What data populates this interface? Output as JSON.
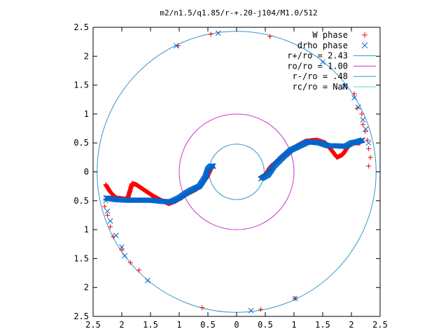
{
  "chart_data": {
    "type": "scatter",
    "title": "m2/n1.5/q1.85/r-+.20-j104/M1.0/512",
    "xlabel": "",
    "ylabel": "",
    "xlim": [
      -2.5,
      2.5
    ],
    "ylim": [
      -2.5,
      2.5
    ],
    "grid": false,
    "legend_position": "top-right",
    "x_ticks": [
      -2.5,
      -2,
      -1.5,
      -1,
      -0.5,
      0,
      0.5,
      1,
      1.5,
      2,
      2.5
    ],
    "x_tick_labels": [
      "2.5",
      "2",
      "1.5",
      "1",
      "0.5",
      "0",
      "0.5",
      "1",
      "1.5",
      "2",
      "2.5"
    ],
    "y_ticks": [
      2.5,
      2,
      1.5,
      1,
      0.5,
      0,
      -0.5,
      -1,
      -1.5,
      -2,
      -2.5
    ],
    "y_tick_labels": [
      "2.5",
      "2",
      "1.5",
      "1",
      "0.5",
      "0",
      "0.5",
      "1",
      "1.5",
      "2",
      "2.5"
    ],
    "series": [
      {
        "name": "W phase",
        "marker": "plus",
        "color": "#ff0000",
        "curve": [
          [
            -2.28,
            -0.22
          ],
          [
            -2.2,
            -0.35
          ],
          [
            -2.1,
            -0.45
          ],
          [
            -1.95,
            -0.47
          ],
          [
            -1.9,
            -0.47
          ],
          [
            -1.85,
            -0.3
          ],
          [
            -1.82,
            -0.2
          ],
          [
            -1.75,
            -0.22
          ],
          [
            -1.6,
            -0.32
          ],
          [
            -1.45,
            -0.42
          ],
          [
            -1.3,
            -0.5
          ],
          [
            -1.18,
            -0.55
          ],
          [
            -1.05,
            -0.5
          ],
          [
            -0.9,
            -0.4
          ],
          [
            -0.7,
            -0.3
          ],
          [
            -0.6,
            -0.2
          ],
          [
            -0.52,
            -0.1
          ],
          [
            -0.45,
            0.05
          ],
          [
            -0.42,
            0.1
          ],
          [
            0.42,
            -0.1
          ],
          [
            0.5,
            -0.05
          ],
          [
            0.6,
            0.1
          ],
          [
            0.7,
            0.18
          ],
          [
            0.85,
            0.3
          ],
          [
            1.05,
            0.45
          ],
          [
            1.2,
            0.53
          ],
          [
            1.4,
            0.55
          ],
          [
            1.55,
            0.5
          ],
          [
            1.65,
            0.38
          ],
          [
            1.75,
            0.25
          ],
          [
            1.85,
            0.3
          ],
          [
            1.95,
            0.45
          ],
          [
            2.05,
            0.5
          ],
          [
            2.15,
            0.5
          ]
        ],
        "points": [
          [
            -0.45,
            2.38
          ],
          [
            0.58,
            2.34
          ],
          [
            -1.02,
            2.18
          ],
          [
            2.05,
            1.35
          ],
          [
            2.1,
            1.1
          ],
          [
            2.18,
            1.0
          ],
          [
            2.2,
            0.82
          ],
          [
            2.24,
            0.7
          ],
          [
            2.28,
            0.55
          ],
          [
            2.3,
            0.4
          ],
          [
            2.33,
            0.25
          ],
          [
            2.3,
            0.1
          ],
          [
            -2.3,
            -0.6
          ],
          [
            -2.25,
            -0.75
          ],
          [
            -2.2,
            -0.95
          ],
          [
            -2.15,
            -1.12
          ],
          [
            -2.0,
            -1.35
          ],
          [
            -1.85,
            -1.57
          ],
          [
            -1.7,
            -1.7
          ],
          [
            -0.6,
            -2.35
          ],
          [
            0.42,
            -2.38
          ],
          [
            1.02,
            -2.19
          ]
        ]
      },
      {
        "name": "drho phase",
        "marker": "cross",
        "color": "#0066cc",
        "curve": [
          [
            -2.28,
            -0.45
          ],
          [
            -2.1,
            -0.48
          ],
          [
            -1.9,
            -0.49
          ],
          [
            -1.7,
            -0.49
          ],
          [
            -1.5,
            -0.49
          ],
          [
            -1.3,
            -0.51
          ],
          [
            -1.15,
            -0.52
          ],
          [
            -1.0,
            -0.45
          ],
          [
            -0.9,
            -0.38
          ],
          [
            -0.8,
            -0.32
          ],
          [
            -0.65,
            -0.25
          ],
          [
            -0.55,
            -0.1
          ],
          [
            -0.5,
            0.05
          ],
          [
            -0.45,
            0.1
          ],
          [
            -0.4,
            0.1
          ],
          [
            0.42,
            -0.12
          ],
          [
            0.55,
            -0.05
          ],
          [
            0.65,
            0.1
          ],
          [
            0.8,
            0.25
          ],
          [
            0.95,
            0.38
          ],
          [
            1.1,
            0.45
          ],
          [
            1.25,
            0.52
          ],
          [
            1.45,
            0.5
          ],
          [
            1.6,
            0.45
          ],
          [
            1.75,
            0.45
          ],
          [
            1.9,
            0.44
          ],
          [
            2.0,
            0.5
          ],
          [
            2.1,
            0.52
          ],
          [
            2.2,
            0.55
          ]
        ],
        "points": [
          [
            -1.05,
            2.18
          ],
          [
            -0.32,
            2.4
          ],
          [
            1.5,
            1.9
          ],
          [
            1.88,
            1.48
          ],
          [
            2.05,
            1.28
          ],
          [
            2.12,
            1.12
          ],
          [
            2.2,
            0.9
          ],
          [
            2.25,
            0.74
          ],
          [
            2.3,
            0.5
          ],
          [
            -2.28,
            -0.5
          ],
          [
            -2.25,
            -0.68
          ],
          [
            -2.2,
            -0.85
          ],
          [
            -2.1,
            -1.1
          ],
          [
            -2.0,
            -1.3
          ],
          [
            -1.95,
            -1.45
          ],
          [
            -1.55,
            -1.88
          ],
          [
            0.25,
            -2.4
          ],
          [
            1.02,
            -2.19
          ]
        ]
      },
      {
        "name": "r+/ro = 2.43",
        "marker": "line",
        "color": "#3399cc",
        "radius": 2.43
      },
      {
        "name": "ro/ro = 1.00",
        "marker": "line",
        "color": "#cc33cc",
        "radius": 1.0
      },
      {
        "name": "r-/ro = .48",
        "marker": "line",
        "color": "#3399cc",
        "radius": 0.48
      },
      {
        "name": "rc/ro = NaN",
        "marker": "line",
        "color": "#66cccc",
        "radius": null
      }
    ]
  }
}
